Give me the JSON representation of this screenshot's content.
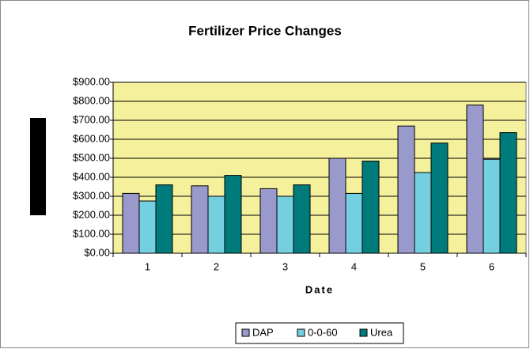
{
  "chart_data": {
    "type": "bar",
    "title": "Fertilizer Price Changes",
    "x_label": "Date",
    "categories": [
      "1",
      "2",
      "3",
      "4",
      "5",
      "6"
    ],
    "series": [
      {
        "name": "DAP",
        "color": "#9999cc",
        "values": [
          315,
          355,
          340,
          500,
          670,
          780
        ]
      },
      {
        "name": "0-0-60",
        "color": "#74d0e0",
        "values": [
          275,
          300,
          300,
          315,
          425,
          495
        ]
      },
      {
        "name": "Urea",
        "color": "#007b7b",
        "values": [
          360,
          410,
          360,
          485,
          580,
          635
        ]
      }
    ],
    "ylim": [
      0,
      900
    ],
    "yticks": [
      {
        "value": 0,
        "label": "$0.00"
      },
      {
        "value": 100,
        "label": "$100.00"
      },
      {
        "value": 200,
        "label": "$200.00"
      },
      {
        "value": 300,
        "label": "$300.00"
      },
      {
        "value": 400,
        "label": "$400.00"
      },
      {
        "value": 500,
        "label": "$500.00"
      },
      {
        "value": 600,
        "label": "$600.00"
      },
      {
        "value": 700,
        "label": "$700.00"
      },
      {
        "value": 800,
        "label": "$800.00"
      },
      {
        "value": 900,
        "label": "$900.00"
      }
    ],
    "grid": true,
    "legend": "bottom"
  }
}
